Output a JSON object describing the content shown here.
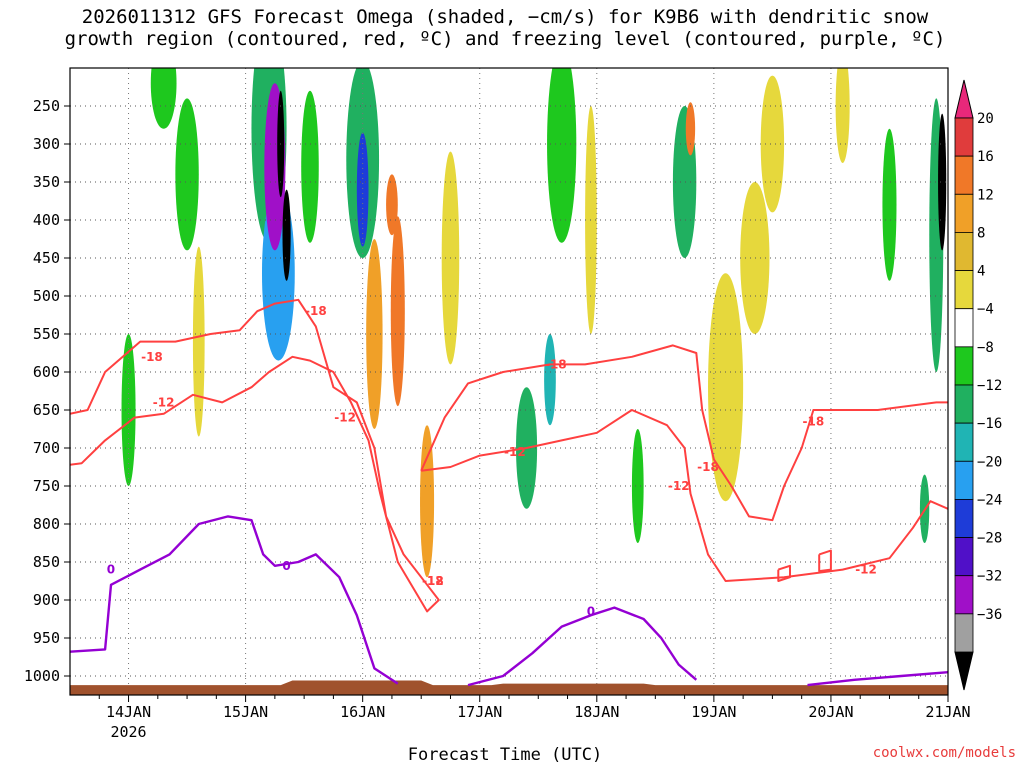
{
  "chart_data": {
    "type": "heatmap",
    "title_line1": "2026011312 GFS Forecast Omega (shaded, −cm/s) for K9B6 with dendritic snow",
    "title_line2": "growth region (contoured, red, ºC) and freezing level (contoured, purple, ºC)",
    "xlabel": "Forecast Time (UTC)",
    "credit": "coolwx.com/models",
    "x_ticks": [
      "14JAN",
      "15JAN",
      "16JAN",
      "17JAN",
      "18JAN",
      "19JAN",
      "20JAN",
      "21JAN"
    ],
    "x_tick_year": "2026",
    "x_range_days": [
      13.5,
      21.0
    ],
    "y_axis": "pressure (hPa)",
    "y_ticks": [
      "250",
      "300",
      "350",
      "400",
      "450",
      "500",
      "550",
      "600",
      "650",
      "700",
      "750",
      "800",
      "850",
      "900",
      "950",
      "1000"
    ],
    "y_range": [
      200,
      1025
    ],
    "colorbar_ticks": [
      "20",
      "16",
      "12",
      "8",
      "4",
      "−4",
      "−8",
      "−12",
      "−16",
      "−20",
      "−24",
      "−28",
      "−32",
      "−36"
    ],
    "colorbar_colors": [
      "#e8287a",
      "#e03c3c",
      "#f07828",
      "#f0a028",
      "#e0b830",
      "#e6d83c",
      "#ffffff",
      "#1ec81e",
      "#20b060",
      "#20b4b4",
      "#28a0f0",
      "#1e3cd8",
      "#5010c8",
      "#a010c8",
      "#a0a0a0",
      "#000000"
    ],
    "ground_color": "#a0522d",
    "dendritic_contour_color": "#ff4040",
    "freezing_contour_color": "#9400d3",
    "contour_labels": [
      {
        "text": "-18",
        "day": 14.2,
        "p": 580,
        "kind": "dgz"
      },
      {
        "text": "-12",
        "day": 14.3,
        "p": 640,
        "kind": "dgz"
      },
      {
        "text": "-18",
        "day": 15.6,
        "p": 520,
        "kind": "dgz"
      },
      {
        "text": "-12",
        "day": 15.85,
        "p": 660,
        "kind": "dgz"
      },
      {
        "text": "-12",
        "day": 16.6,
        "p": 875,
        "kind": "dgz"
      },
      {
        "text": "-18",
        "day": 16.6,
        "p": 875,
        "kind": "dgz"
      },
      {
        "text": "-12",
        "day": 17.3,
        "p": 705,
        "kind": "dgz"
      },
      {
        "text": "-18",
        "day": 17.65,
        "p": 590,
        "kind": "dgz"
      },
      {
        "text": "-12",
        "day": 18.7,
        "p": 750,
        "kind": "dgz"
      },
      {
        "text": "-18",
        "day": 18.95,
        "p": 725,
        "kind": "dgz"
      },
      {
        "text": "-18",
        "day": 19.85,
        "p": 665,
        "kind": "dgz"
      },
      {
        "text": "-12",
        "day": 20.3,
        "p": 860,
        "kind": "dgz"
      },
      {
        "text": "0",
        "day": 13.85,
        "p": 860,
        "kind": "frz"
      },
      {
        "text": "0",
        "day": 15.35,
        "p": 855,
        "kind": "frz"
      },
      {
        "text": "0",
        "day": 17.95,
        "p": 915,
        "kind": "frz"
      }
    ],
    "dendritic_contours": [
      [
        [
          13.5,
          655
        ],
        [
          13.65,
          650
        ],
        [
          13.8,
          600
        ],
        [
          14.1,
          560
        ],
        [
          14.4,
          560
        ],
        [
          14.7,
          550
        ],
        [
          14.95,
          545
        ],
        [
          15.1,
          520
        ],
        [
          15.25,
          510
        ],
        [
          15.45,
          505
        ],
        [
          15.6,
          540
        ],
        [
          15.75,
          620
        ],
        [
          15.95,
          640
        ],
        [
          16.1,
          700
        ],
        [
          16.2,
          790
        ],
        [
          16.35,
          840
        ],
        [
          16.55,
          880
        ],
        [
          16.65,
          900
        ],
        [
          16.55,
          915
        ],
        [
          16.3,
          850
        ],
        [
          16.15,
          760
        ],
        [
          16.05,
          690
        ],
        [
          15.9,
          640
        ],
        [
          15.75,
          600
        ],
        [
          15.55,
          585
        ],
        [
          15.4,
          580
        ],
        [
          15.2,
          600
        ],
        [
          15.05,
          620
        ],
        [
          14.8,
          640
        ],
        [
          14.55,
          630
        ],
        [
          14.3,
          655
        ],
        [
          14.05,
          660
        ],
        [
          13.8,
          690
        ],
        [
          13.6,
          720
        ],
        [
          13.5,
          722
        ]
      ],
      [
        [
          16.5,
          730
        ],
        [
          16.7,
          660
        ],
        [
          16.9,
          615
        ],
        [
          17.2,
          600
        ],
        [
          17.6,
          590
        ],
        [
          17.9,
          590
        ],
        [
          18.3,
          580
        ],
        [
          18.65,
          565
        ],
        [
          18.85,
          575
        ],
        [
          18.9,
          650
        ],
        [
          19.0,
          715
        ],
        [
          19.15,
          750
        ],
        [
          19.3,
          790
        ],
        [
          19.5,
          795
        ],
        [
          19.6,
          750
        ],
        [
          19.75,
          700
        ],
        [
          19.85,
          650
        ],
        [
          20.4,
          650
        ],
        [
          20.9,
          640
        ],
        [
          21.0,
          640
        ]
      ],
      [
        [
          16.5,
          730
        ],
        [
          16.75,
          725
        ],
        [
          17.0,
          710
        ],
        [
          17.4,
          700
        ],
        [
          17.7,
          690
        ],
        [
          18.0,
          680
        ],
        [
          18.3,
          650
        ],
        [
          18.6,
          670
        ],
        [
          18.75,
          700
        ],
        [
          18.8,
          760
        ],
        [
          18.95,
          840
        ],
        [
          19.1,
          875
        ],
        [
          19.6,
          870
        ],
        [
          20.1,
          860
        ],
        [
          20.5,
          845
        ],
        [
          20.7,
          805
        ],
        [
          20.85,
          770
        ],
        [
          21.0,
          780
        ]
      ],
      [
        [
          19.55,
          860
        ],
        [
          19.65,
          855
        ],
        [
          19.65,
          870
        ],
        [
          19.55,
          875
        ],
        [
          19.55,
          860
        ]
      ],
      [
        [
          19.9,
          840
        ],
        [
          20.0,
          835
        ],
        [
          20.0,
          860
        ],
        [
          19.9,
          862
        ],
        [
          19.9,
          840
        ]
      ]
    ],
    "freezing_contours": [
      [
        [
          13.5,
          968
        ],
        [
          13.8,
          965
        ],
        [
          13.85,
          880
        ],
        [
          14.1,
          860
        ],
        [
          14.35,
          840
        ],
        [
          14.6,
          800
        ],
        [
          14.85,
          790
        ],
        [
          15.05,
          795
        ],
        [
          15.15,
          840
        ],
        [
          15.25,
          855
        ],
        [
          15.45,
          850
        ],
        [
          15.6,
          840
        ],
        [
          15.8,
          870
        ],
        [
          15.95,
          920
        ],
        [
          16.1,
          990
        ],
        [
          16.3,
          1010
        ]
      ],
      [
        [
          16.9,
          1012
        ],
        [
          17.2,
          1000
        ],
        [
          17.45,
          970
        ],
        [
          17.7,
          935
        ],
        [
          17.95,
          920
        ],
        [
          18.15,
          910
        ],
        [
          18.4,
          925
        ],
        [
          18.55,
          950
        ],
        [
          18.7,
          985
        ],
        [
          18.85,
          1005
        ]
      ],
      [
        [
          19.8,
          1012
        ],
        [
          20.2,
          1005
        ],
        [
          20.6,
          1000
        ],
        [
          21.0,
          995
        ]
      ]
    ],
    "omega_cells": [
      {
        "day": 15.25,
        "p": 330,
        "w": 0.18,
        "h": 220,
        "value": -30
      },
      {
        "day": 15.3,
        "p": 300,
        "w": 0.06,
        "h": 140,
        "value": -36
      },
      {
        "day": 15.35,
        "p": 420,
        "w": 0.07,
        "h": 120,
        "value": -36
      },
      {
        "day": 15.28,
        "p": 470,
        "w": 0.28,
        "h": 230,
        "value": -18
      },
      {
        "day": 15.2,
        "p": 280,
        "w": 0.3,
        "h": 300,
        "value": -8
      },
      {
        "day": 16.0,
        "p": 360,
        "w": 0.1,
        "h": 150,
        "value": -22
      },
      {
        "day": 16.0,
        "p": 320,
        "w": 0.28,
        "h": 260,
        "value": -8
      },
      {
        "day": 16.3,
        "p": 520,
        "w": 0.12,
        "h": 250,
        "value": 12
      },
      {
        "day": 16.1,
        "p": 550,
        "w": 0.14,
        "h": 250,
        "value": 8
      },
      {
        "day": 16.25,
        "p": 380,
        "w": 0.1,
        "h": 80,
        "value": 14
      },
      {
        "day": 18.8,
        "p": 280,
        "w": 0.08,
        "h": 70,
        "value": 12
      },
      {
        "day": 18.75,
        "p": 350,
        "w": 0.2,
        "h": 200,
        "value": -8
      },
      {
        "day": 20.95,
        "p": 350,
        "w": 0.07,
        "h": 180,
        "value": -36
      },
      {
        "day": 20.9,
        "p": 420,
        "w": 0.12,
        "h": 360,
        "value": -10
      },
      {
        "day": 14.3,
        "p": 220,
        "w": 0.22,
        "h": 120,
        "value": -6
      },
      {
        "day": 14.5,
        "p": 340,
        "w": 0.2,
        "h": 200,
        "value": -6
      },
      {
        "day": 17.7,
        "p": 300,
        "w": 0.25,
        "h": 260,
        "value": -6
      },
      {
        "day": 17.4,
        "p": 700,
        "w": 0.18,
        "h": 160,
        "value": -10
      },
      {
        "day": 17.6,
        "p": 610,
        "w": 0.1,
        "h": 120,
        "value": -14
      },
      {
        "day": 14.0,
        "p": 650,
        "w": 0.12,
        "h": 200,
        "value": -6
      },
      {
        "day": 16.75,
        "p": 450,
        "w": 0.15,
        "h": 280,
        "value": 6
      },
      {
        "day": 17.95,
        "p": 400,
        "w": 0.1,
        "h": 300,
        "value": 6
      },
      {
        "day": 19.1,
        "p": 620,
        "w": 0.3,
        "h": 300,
        "value": 5
      },
      {
        "day": 19.5,
        "p": 300,
        "w": 0.2,
        "h": 180,
        "value": 5
      },
      {
        "day": 20.1,
        "p": 250,
        "w": 0.12,
        "h": 150,
        "value": 5
      },
      {
        "day": 14.6,
        "p": 560,
        "w": 0.1,
        "h": 250,
        "value": 6
      },
      {
        "day": 16.55,
        "p": 770,
        "w": 0.12,
        "h": 200,
        "value": 8
      },
      {
        "day": 15.55,
        "p": 330,
        "w": 0.15,
        "h": 200,
        "value": -6
      },
      {
        "day": 19.35,
        "p": 450,
        "w": 0.25,
        "h": 200,
        "value": 5
      },
      {
        "day": 20.5,
        "p": 380,
        "w": 0.12,
        "h": 200,
        "value": -6
      },
      {
        "day": 18.35,
        "p": 750,
        "w": 0.1,
        "h": 150,
        "value": -6
      },
      {
        "day": 20.8,
        "p": 780,
        "w": 0.08,
        "h": 90,
        "value": -8
      }
    ]
  }
}
